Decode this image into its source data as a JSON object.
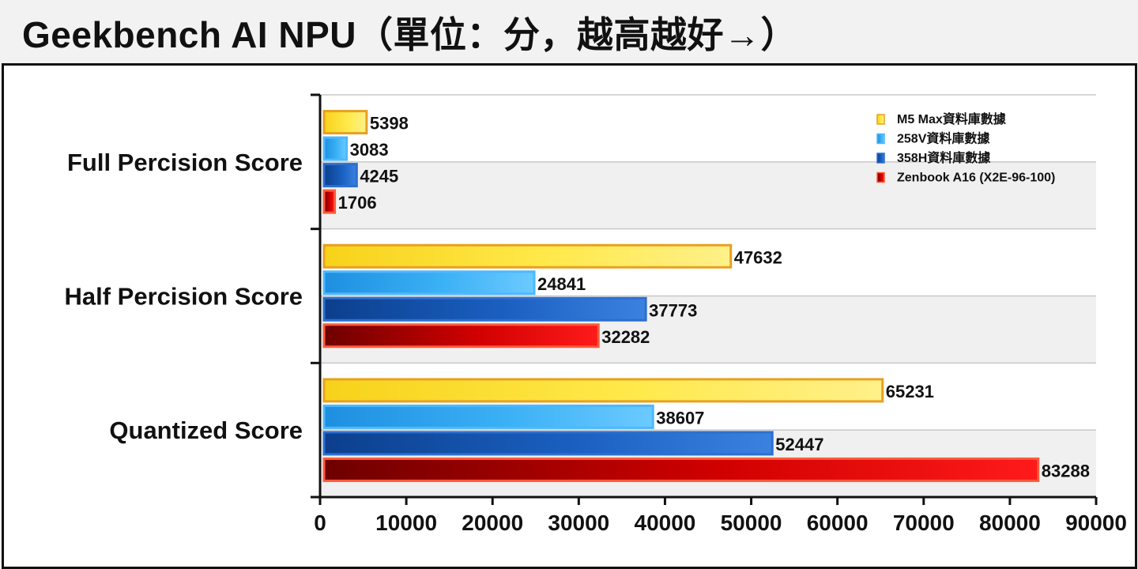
{
  "header": {
    "title": "Geekbench AI NPU（單位：分，越高越好→）"
  },
  "colors": {
    "m5_max": "#f5c400",
    "v258": "#2aa0ef",
    "h358": "#1a5fc0",
    "zenbook": "#d20000"
  },
  "chart_data": {
    "type": "bar",
    "orientation": "horizontal",
    "categories": [
      "Full Percision Score",
      "Half Percision Score",
      "Quantized Score"
    ],
    "series": [
      {
        "name": "M5 Max資料庫數據",
        "values": [
          5398,
          47632,
          65231
        ]
      },
      {
        "name": "258V資料庫數據",
        "values": [
          3083,
          24841,
          38607
        ]
      },
      {
        "name": "358H資料庫數據",
        "values": [
          4245,
          37773,
          52447
        ]
      },
      {
        "name": "Zenbook A16 (X2E-96-100)",
        "values": [
          1706,
          32282,
          83288
        ]
      }
    ],
    "xlim": [
      0,
      90000
    ],
    "xticks": [
      0,
      10000,
      20000,
      30000,
      40000,
      50000,
      60000,
      70000,
      80000,
      90000
    ],
    "legend_position": "top-right",
    "grid": true
  }
}
